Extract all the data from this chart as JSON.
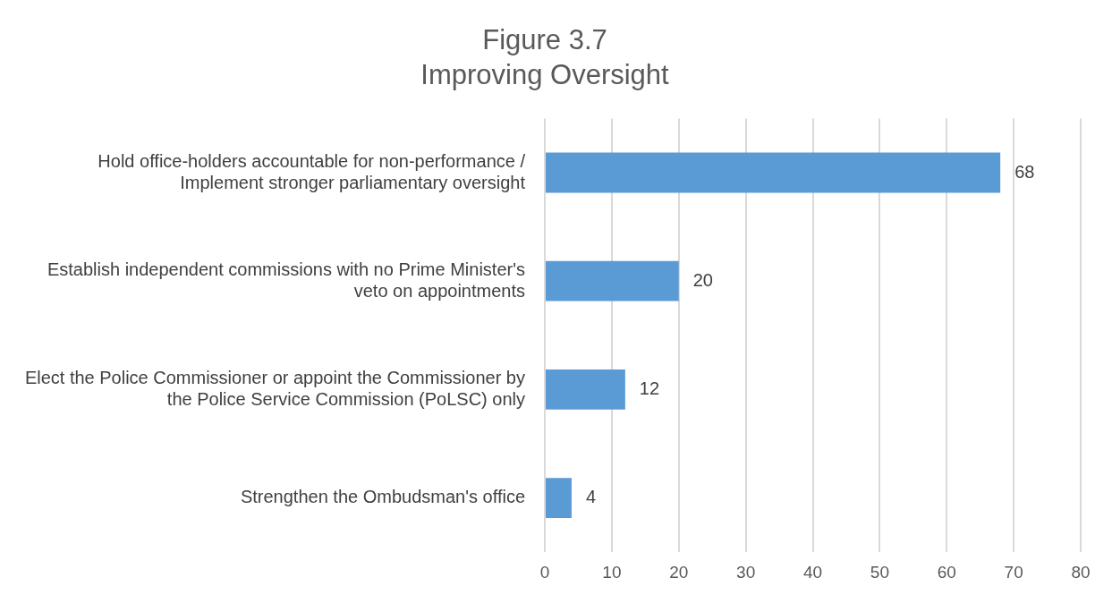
{
  "chart_data": {
    "type": "bar",
    "orientation": "horizontal",
    "title": "Figure 3.7",
    "subtitle": "Improving Oversight",
    "categories": [
      "Hold office-holders accountable for non-performance / Implement stronger parliamentary oversight",
      "Establish independent commissions with no Prime Minister's veto on appointments",
      "Elect the Police Commissioner or appoint the Commissioner by the Police Service Commission (PoLSC) only",
      "Strengthen the Ombudsman's office"
    ],
    "values": [
      68,
      20,
      12,
      4
    ],
    "color": "#5b9bd5",
    "xlim": [
      0,
      80
    ],
    "xticks": [
      0,
      10,
      20,
      30,
      40,
      50,
      60,
      70,
      80
    ],
    "grid": "x",
    "legend": false,
    "data_labels": true
  }
}
